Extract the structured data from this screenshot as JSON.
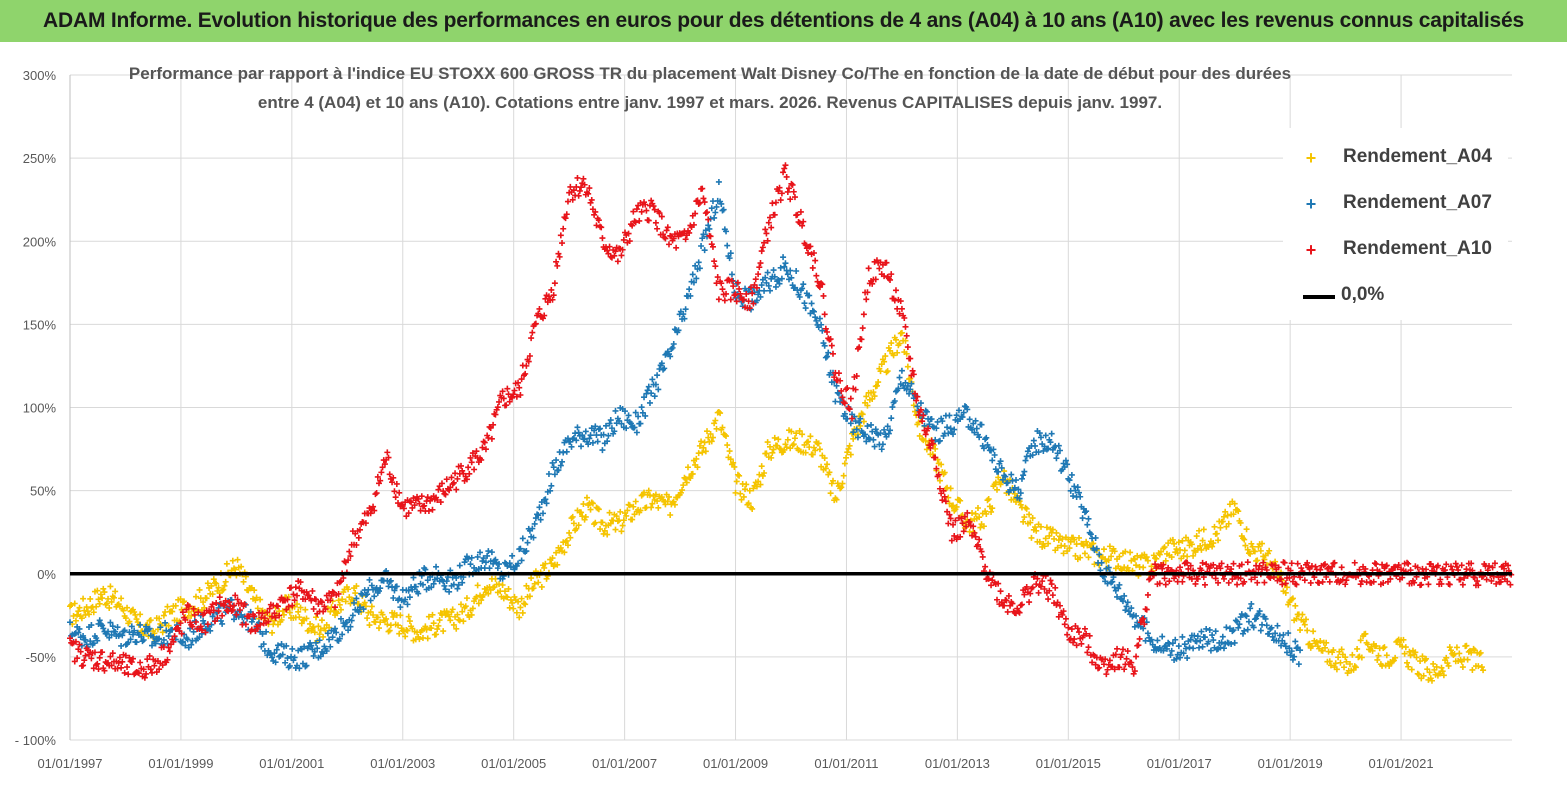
{
  "header": {
    "title": "ADAM Informe. Evolution historique des performances en euros pour des détentions de 4 ans (A04) à 10 ans (A10) avec les revenus connus capitalisés"
  },
  "colors": {
    "header_bg": "#8fd46c",
    "a04": "#f5c400",
    "a07": "#1f78b4",
    "a10": "#e8141a",
    "zero": "#000000",
    "grid": "#d9d9d9"
  },
  "chart_data": {
    "type": "scatter",
    "title_lines": [
      "Performance par rapport à l'indice EU STOXX 600 GROSS TR  du placement Walt Disney Co/The en fonction de la date de début pour des durées",
      "entre 4 (A04) et 10 ans (A10). Cotations entre janv. 1997 et mars. 2026. Revenus CAPITALISES depuis janv. 1997."
    ],
    "x_tick_labels": [
      "01/01/1997",
      "01/01/1999",
      "01/01/2001",
      "01/01/2003",
      "01/01/2005",
      "01/01/2007",
      "01/01/2009",
      "01/01/2011",
      "01/01/2013",
      "01/01/2015",
      "01/01/2017",
      "01/01/2019",
      "01/01/2021"
    ],
    "xlim": [
      1997.0,
      2023.0
    ],
    "y_tick_labels": [
      "- 100%",
      "-50%",
      "0%",
      "50%",
      "100%",
      "150%",
      "200%",
      "250%",
      "300%"
    ],
    "ylim": [
      -100,
      300
    ],
    "grid": "vertical-and-horizontal",
    "legend_position": "top-right",
    "series": [
      {
        "name": "Rendement_A04",
        "color": "#f5c400",
        "marker": "+",
        "x": [
          1997.0,
          1997.3,
          1997.6,
          1997.9,
          1998.2,
          1998.5,
          1998.8,
          1999.1,
          1999.4,
          1999.7,
          2000.0,
          2000.3,
          2000.6,
          2000.9,
          2001.2,
          2001.5,
          2001.8,
          2002.1,
          2002.4,
          2002.7,
          2003.0,
          2003.3,
          2003.6,
          2003.9,
          2004.2,
          2004.5,
          2004.8,
          2005.1,
          2005.4,
          2005.7,
          2006.0,
          2006.3,
          2006.6,
          2006.9,
          2007.2,
          2007.5,
          2007.8,
          2008.1,
          2008.4,
          2008.7,
          2009.0,
          2009.3,
          2009.6,
          2009.9,
          2010.2,
          2010.5,
          2010.8,
          2011.1,
          2011.4,
          2011.7,
          2012.0,
          2012.3,
          2012.6,
          2012.9,
          2013.2,
          2013.5,
          2013.8,
          2014.1,
          2014.4,
          2014.7,
          2015.0,
          2015.3,
          2015.6,
          2015.9,
          2016.2,
          2016.5,
          2016.8,
          2017.1,
          2017.4,
          2017.7,
          2018.0,
          2018.3,
          2018.6,
          2018.9,
          2019.2,
          2019.5,
          2019.8,
          2020.1,
          2020.4,
          2020.7,
          2021.0,
          2021.3,
          2021.6,
          2021.9,
          2022.2,
          2022.5
        ],
        "y": [
          -25,
          -20,
          -12,
          -18,
          -30,
          -35,
          -25,
          -20,
          -15,
          -5,
          5,
          -15,
          -30,
          -20,
          -25,
          -35,
          -20,
          -10,
          -25,
          -28,
          -30,
          -35,
          -30,
          -28,
          -20,
          -5,
          -10,
          -20,
          -5,
          5,
          25,
          40,
          30,
          30,
          40,
          45,
          40,
          60,
          75,
          95,
          55,
          45,
          75,
          80,
          80,
          75,
          45,
          80,
          105,
          125,
          145,
          90,
          70,
          45,
          30,
          35,
          60,
          40,
          25,
          20,
          15,
          15,
          10,
          10,
          5,
          5,
          15,
          15,
          20,
          25,
          40,
          15,
          10,
          -10,
          -30,
          -45,
          -50,
          -55,
          -40,
          -50,
          -45,
          -55,
          -60,
          -50,
          -50,
          -55
        ]
      },
      {
        "name": "Rendement_A07",
        "color": "#1f78b4",
        "marker": "+",
        "x": [
          1997.0,
          1997.3,
          1997.6,
          1997.9,
          1998.2,
          1998.5,
          1998.8,
          1999.1,
          1999.4,
          1999.7,
          2000.0,
          2000.3,
          2000.6,
          2000.9,
          2001.2,
          2001.5,
          2001.8,
          2002.1,
          2002.4,
          2002.7,
          2003.0,
          2003.3,
          2003.6,
          2003.9,
          2004.2,
          2004.5,
          2004.8,
          2005.1,
          2005.4,
          2005.7,
          2006.0,
          2006.3,
          2006.6,
          2006.9,
          2007.2,
          2007.5,
          2007.8,
          2008.1,
          2008.4,
          2008.7,
          2009.0,
          2009.3,
          2009.6,
          2009.9,
          2010.2,
          2010.5,
          2010.8,
          2011.1,
          2011.4,
          2011.7,
          2012.0,
          2012.3,
          2012.6,
          2012.9,
          2013.2,
          2013.5,
          2013.8,
          2014.1,
          2014.4,
          2014.7,
          2015.0,
          2015.3,
          2015.6,
          2015.9,
          2016.2,
          2016.5,
          2016.8,
          2017.1,
          2017.4,
          2017.7,
          2018.0,
          2018.3,
          2018.6,
          2018.9,
          2019.2
        ],
        "y": [
          -35,
          -38,
          -32,
          -38,
          -35,
          -40,
          -35,
          -40,
          -30,
          -25,
          -20,
          -30,
          -45,
          -50,
          -50,
          -45,
          -35,
          -25,
          -10,
          -5,
          -15,
          -5,
          0,
          -5,
          5,
          10,
          0,
          10,
          30,
          60,
          80,
          85,
          80,
          95,
          90,
          110,
          130,
          160,
          195,
          230,
          170,
          165,
          175,
          185,
          170,
          150,
          110,
          90,
          85,
          80,
          120,
          100,
          85,
          90,
          95,
          80,
          60,
          50,
          80,
          80,
          60,
          35,
          5,
          -10,
          -25,
          -40,
          -45,
          -45,
          -40,
          -40,
          -35,
          -25,
          -30,
          -40,
          -50
        ]
      },
      {
        "name": "Rendement_A10",
        "color": "#e8141a",
        "marker": "+",
        "x": [
          1997.0,
          1997.3,
          1997.6,
          1997.9,
          1998.2,
          1998.5,
          1998.8,
          1999.1,
          1999.4,
          1999.7,
          2000.0,
          2000.3,
          2000.6,
          2000.9,
          2001.2,
          2001.5,
          2001.8,
          2002.1,
          2002.4,
          2002.7,
          2003.0,
          2003.3,
          2003.6,
          2003.9,
          2004.2,
          2004.5,
          2004.8,
          2005.1,
          2005.4,
          2005.7,
          2006.0,
          2006.3,
          2006.6,
          2006.9,
          2007.2,
          2007.5,
          2007.8,
          2008.1,
          2008.4,
          2008.7,
          2009.0,
          2009.3,
          2009.6,
          2009.9,
          2010.2,
          2010.5,
          2010.8,
          2011.1,
          2011.4,
          2011.7,
          2012.0,
          2012.3,
          2012.6,
          2012.9,
          2013.2,
          2013.5,
          2013.8,
          2014.1,
          2014.4,
          2014.7,
          2015.0,
          2015.3,
          2015.6,
          2015.9,
          2016.2,
          2016.5,
          2016.8,
          2017.1,
          2017.4,
          2017.7,
          2018.0,
          2018.3,
          2018.6,
          2018.9,
          2019.2,
          2019.5,
          2019.8,
          2020.1,
          2020.4,
          2020.7,
          2021.0,
          2021.3,
          2021.6,
          2021.9,
          2022.2,
          2022.5,
          2022.8,
          2023.0
        ],
        "y": [
          -45,
          -50,
          -52,
          -55,
          -58,
          -55,
          -45,
          -25,
          -30,
          -20,
          -20,
          -30,
          -25,
          -15,
          -10,
          -20,
          -15,
          20,
          35,
          70,
          40,
          40,
          45,
          55,
          65,
          75,
          105,
          110,
          150,
          170,
          230,
          235,
          200,
          190,
          215,
          220,
          200,
          200,
          230,
          170,
          170,
          165,
          210,
          240,
          210,
          180,
          120,
          100,
          180,
          185,
          155,
          100,
          70,
          25,
          30,
          5,
          -15,
          -20,
          -5,
          -10,
          -35,
          -40,
          -55,
          -50,
          -55,
          0,
          0,
          0,
          0,
          0,
          0,
          0,
          0,
          0,
          0,
          0,
          0,
          0,
          0,
          0,
          0,
          0,
          0,
          0,
          0,
          0,
          0,
          0
        ]
      },
      {
        "name": "0,0%",
        "color": "#000000",
        "marker": "line",
        "x": [
          1997.0,
          2023.0
        ],
        "y": [
          0,
          0
        ]
      }
    ]
  }
}
